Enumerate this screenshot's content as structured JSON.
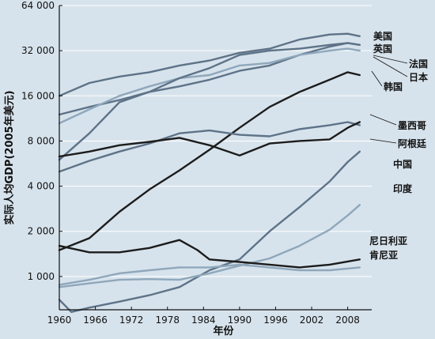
{
  "chart_data": {
    "type": "line",
    "title": "",
    "xlabel": "年份",
    "ylabel": "实际人均GDP(2005年美元)",
    "y_scale": "log",
    "xlim": [
      1960,
      2012
    ],
    "ylim": [
      600,
      64000
    ],
    "grid": "horizontal",
    "x_ticks": [
      1960,
      1966,
      1972,
      1978,
      1984,
      1990,
      1996,
      2002,
      2008
    ],
    "x_tick_labels": [
      "1960",
      "1966",
      "1972",
      "1978",
      "1984",
      "1990",
      "1996",
      "2002",
      "2008"
    ],
    "y_ticks": [
      1000,
      2000,
      4000,
      8000,
      16000,
      32000,
      64000
    ],
    "y_tick_labels": [
      "1 000",
      "2 000",
      "4 000",
      "8 000",
      "16 000",
      "32 000",
      "64 000"
    ],
    "colors": {
      "dark": "#1c1c1c",
      "mid": "#5e7388",
      "light": "#8fa7bb",
      "grid": "#ffffff",
      "background": "#d7e3ec"
    },
    "series": [
      {
        "name": "美国",
        "color_key": "mid",
        "x": [
          1960,
          1965,
          1970,
          1975,
          1980,
          1985,
          1990,
          1995,
          2000,
          2005,
          2008,
          2010
        ],
        "y": [
          16000,
          19500,
          21500,
          23000,
          25500,
          27500,
          31000,
          33000,
          38000,
          41000,
          41500,
          40000
        ]
      },
      {
        "name": "英国",
        "color_key": "mid",
        "x": [
          1960,
          1965,
          1970,
          1975,
          1980,
          1985,
          1990,
          1995,
          2000,
          2005,
          2008,
          2010
        ],
        "y": [
          12000,
          13500,
          15000,
          17000,
          18500,
          20500,
          23500,
          25500,
          30000,
          34000,
          36000,
          35000
        ]
      },
      {
        "name": "法国",
        "color_key": "light",
        "x": [
          1960,
          1965,
          1970,
          1975,
          1980,
          1985,
          1990,
          1995,
          2000,
          2005,
          2008,
          2010
        ],
        "y": [
          10500,
          13000,
          16000,
          18500,
          21000,
          22000,
          25500,
          26500,
          30000,
          32000,
          33000,
          32000
        ]
      },
      {
        "name": "日本",
        "color_key": "mid",
        "x": [
          1960,
          1965,
          1970,
          1975,
          1980,
          1985,
          1990,
          1995,
          2000,
          2005,
          2008,
          2010
        ],
        "y": [
          6000,
          9000,
          14500,
          17000,
          21000,
          24500,
          30000,
          32000,
          33000,
          35000,
          36000,
          35000
        ]
      },
      {
        "name": "韩国",
        "color_key": "dark",
        "x": [
          1960,
          1965,
          1970,
          1975,
          1980,
          1985,
          1990,
          1995,
          2000,
          2005,
          2008,
          2010
        ],
        "y": [
          1500,
          1800,
          2700,
          3800,
          5100,
          7000,
          9800,
          13500,
          17000,
          20500,
          23000,
          22000
        ]
      },
      {
        "name": "墨西哥",
        "color_key": "mid",
        "x": [
          1960,
          1965,
          1970,
          1975,
          1980,
          1985,
          1990,
          1995,
          2000,
          2005,
          2008,
          2010
        ],
        "y": [
          5000,
          5900,
          6800,
          7700,
          9000,
          9400,
          8800,
          8600,
          9600,
          10200,
          10700,
          10200
        ]
      },
      {
        "name": "阿根廷",
        "color_key": "dark",
        "x": [
          1960,
          1965,
          1970,
          1975,
          1980,
          1985,
          1990,
          1995,
          2000,
          2005,
          2008,
          2010
        ],
        "y": [
          6300,
          6800,
          7500,
          7900,
          8400,
          7500,
          6400,
          7700,
          8000,
          8200,
          9800,
          10700
        ]
      },
      {
        "name": "中国",
        "color_key": "mid",
        "x": [
          1960,
          1962,
          1965,
          1970,
          1975,
          1980,
          1985,
          1990,
          1995,
          2000,
          2005,
          2008,
          2010
        ],
        "y": [
          700,
          580,
          620,
          680,
          750,
          850,
          1100,
          1300,
          2000,
          2900,
          4300,
          5800,
          6800
        ]
      },
      {
        "name": "印度",
        "color_key": "light",
        "x": [
          1960,
          1965,
          1970,
          1975,
          1980,
          1985,
          1990,
          1995,
          2000,
          2005,
          2008,
          2010
        ],
        "y": [
          850,
          900,
          950,
          960,
          950,
          1050,
          1180,
          1320,
          1600,
          2050,
          2550,
          3000
        ]
      },
      {
        "name": "尼日利亚",
        "color_key": "dark",
        "x": [
          1960,
          1965,
          1970,
          1975,
          1980,
          1983,
          1985,
          1990,
          1995,
          2000,
          2005,
          2010
        ],
        "y": [
          1600,
          1450,
          1450,
          1550,
          1750,
          1500,
          1300,
          1250,
          1200,
          1150,
          1200,
          1300
        ]
      },
      {
        "name": "肯尼亚",
        "color_key": "light",
        "x": [
          1960,
          1965,
          1970,
          1975,
          1980,
          1985,
          1990,
          1995,
          2000,
          2005,
          2010
        ],
        "y": [
          880,
          950,
          1050,
          1100,
          1150,
          1150,
          1200,
          1150,
          1100,
          1100,
          1150
        ]
      }
    ]
  }
}
